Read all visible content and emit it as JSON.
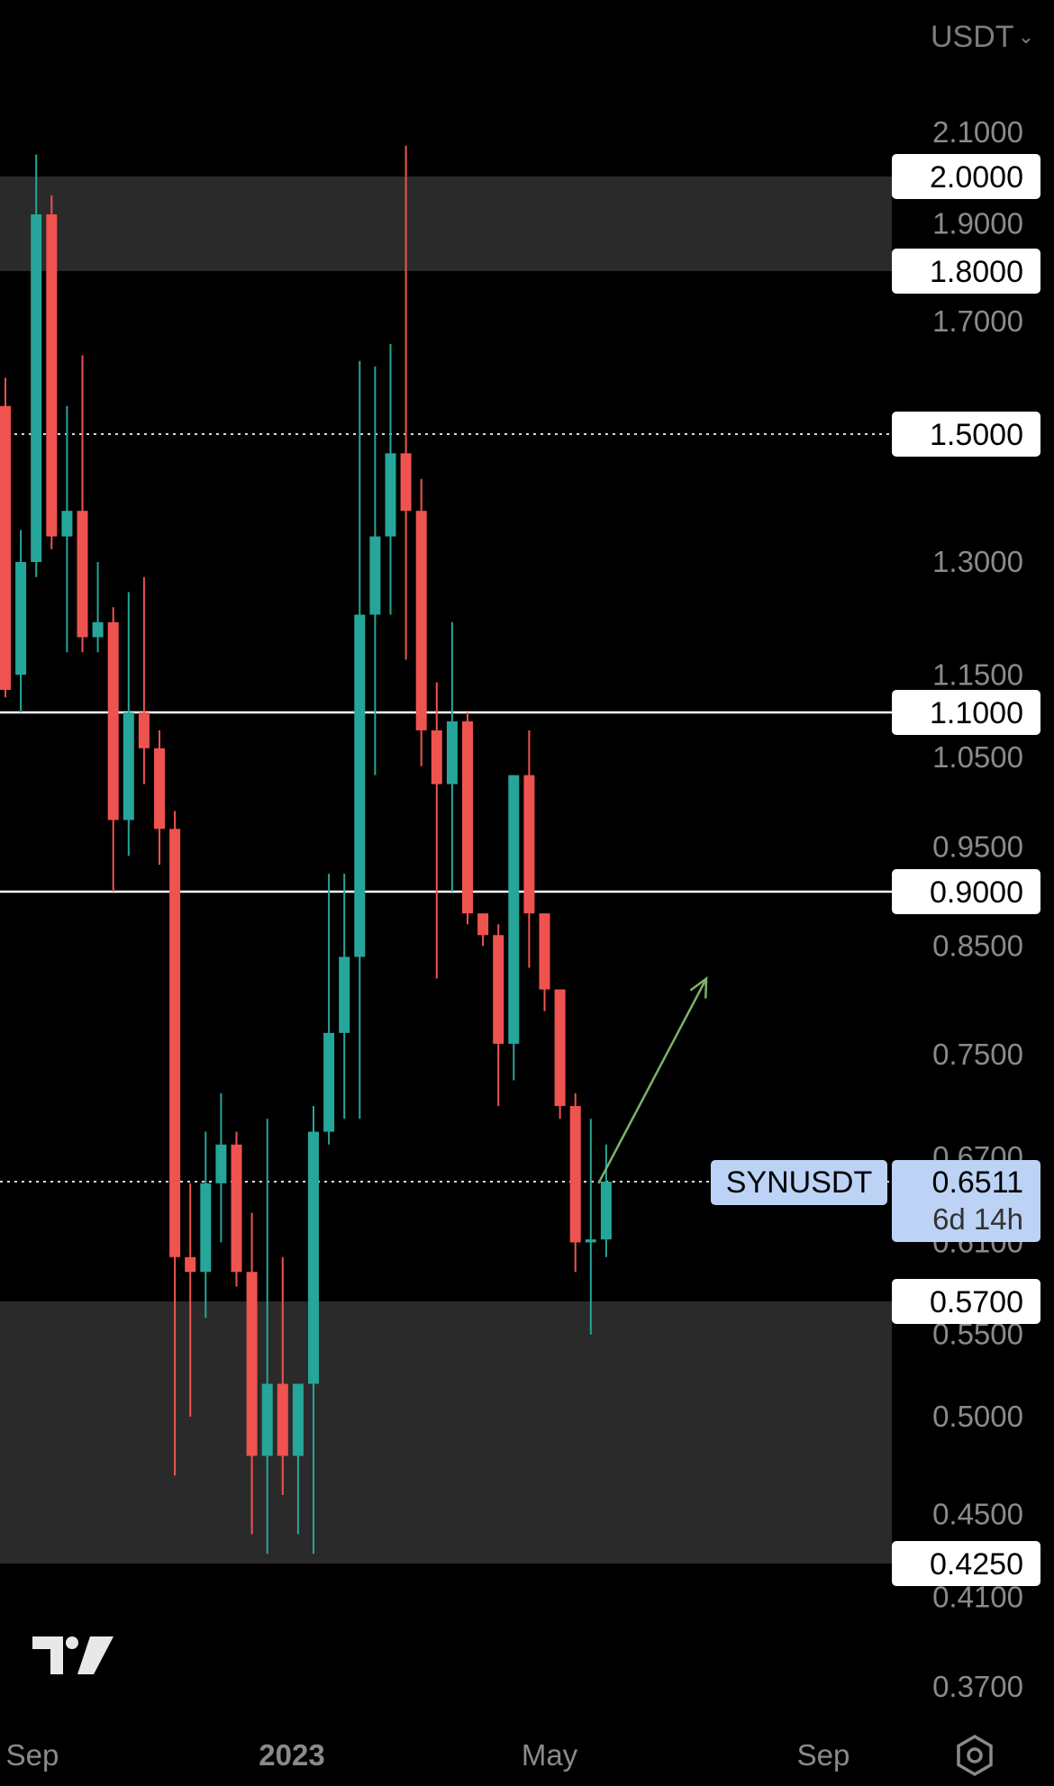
{
  "header": {
    "currency_label": "USDT",
    "currency_icon": "chevron-down-icon"
  },
  "footer": {
    "logo_icon": "tradingview-logo-icon",
    "settings_icon": "gear-icon"
  },
  "colors": {
    "background": "#000000",
    "up": "#26a69a",
    "down": "#ef5350",
    "zone": "#2a2a2a",
    "level_line": "#ffffff",
    "arrow": "#7cb36b",
    "last_price_bg": "#bcd3f5",
    "axis_text": "#8a8a8a"
  },
  "chart_data": {
    "type": "candlestick",
    "symbol": "SYNUSDT",
    "last_price": "0.6511",
    "countdown": "6d 14h",
    "y_ticks": [
      "2.1000",
      "1.9000",
      "1.7000",
      "1.3000",
      "1.1500",
      "1.0500",
      "0.9500",
      "0.8500",
      "0.7500",
      "0.6700",
      "0.6100",
      "0.5500",
      "0.5000",
      "0.4500",
      "0.4100",
      "0.3700"
    ],
    "level_labels": [
      {
        "value": "2.0000",
        "y": 2.0
      },
      {
        "value": "1.8000",
        "y": 1.8
      },
      {
        "value": "1.5000",
        "y": 1.5
      },
      {
        "value": "1.1000",
        "y": 1.1
      },
      {
        "value": "0.9000",
        "y": 0.9
      },
      {
        "value": "0.5700",
        "y": 0.57
      },
      {
        "value": "0.4250",
        "y": 0.425
      }
    ],
    "horizontal_lines": [
      {
        "y": 1.1,
        "style": "solid"
      },
      {
        "y": 0.9,
        "style": "solid"
      },
      {
        "y": 1.5,
        "style": "dotted"
      },
      {
        "y": 0.6511,
        "style": "dotted"
      }
    ],
    "zones": [
      {
        "from": 1.8,
        "to": 2.0
      },
      {
        "from": 0.425,
        "to": 0.57
      }
    ],
    "x_labels": [
      {
        "label": "Sep",
        "bold": false
      },
      {
        "label": "2023",
        "bold": true
      },
      {
        "label": "May",
        "bold": false
      },
      {
        "label": "Sep",
        "bold": false
      }
    ],
    "candles": [
      {
        "o": 1.55,
        "h": 1.6,
        "l": 1.12,
        "c": 1.13
      },
      {
        "o": 1.15,
        "h": 1.35,
        "l": 1.1,
        "c": 1.3
      },
      {
        "o": 1.3,
        "h": 2.05,
        "l": 1.28,
        "c": 1.92
      },
      {
        "o": 1.92,
        "h": 1.96,
        "l": 1.32,
        "c": 1.34
      },
      {
        "o": 1.34,
        "h": 1.55,
        "l": 1.18,
        "c": 1.38
      },
      {
        "o": 1.38,
        "h": 1.64,
        "l": 1.18,
        "c": 1.2
      },
      {
        "o": 1.2,
        "h": 1.3,
        "l": 1.18,
        "c": 1.22
      },
      {
        "o": 1.22,
        "h": 1.24,
        "l": 0.9,
        "c": 0.98
      },
      {
        "o": 0.98,
        "h": 1.26,
        "l": 0.94,
        "c": 1.1
      },
      {
        "o": 1.1,
        "h": 1.28,
        "l": 1.02,
        "c": 1.06
      },
      {
        "o": 1.06,
        "h": 1.08,
        "l": 0.93,
        "c": 0.97
      },
      {
        "o": 0.97,
        "h": 0.99,
        "l": 0.47,
        "c": 0.6
      },
      {
        "o": 0.6,
        "h": 0.65,
        "l": 0.5,
        "c": 0.59
      },
      {
        "o": 0.59,
        "h": 0.69,
        "l": 0.56,
        "c": 0.65
      },
      {
        "o": 0.65,
        "h": 0.72,
        "l": 0.61,
        "c": 0.68
      },
      {
        "o": 0.68,
        "h": 0.69,
        "l": 0.58,
        "c": 0.59
      },
      {
        "o": 0.59,
        "h": 0.63,
        "l": 0.44,
        "c": 0.48
      },
      {
        "o": 0.48,
        "h": 0.7,
        "l": 0.43,
        "c": 0.52
      },
      {
        "o": 0.52,
        "h": 0.6,
        "l": 0.46,
        "c": 0.48
      },
      {
        "o": 0.48,
        "h": 0.52,
        "l": 0.44,
        "c": 0.52
      },
      {
        "o": 0.52,
        "h": 0.71,
        "l": 0.43,
        "c": 0.69
      },
      {
        "o": 0.69,
        "h": 0.92,
        "l": 0.68,
        "c": 0.77
      },
      {
        "o": 0.77,
        "h": 0.92,
        "l": 0.7,
        "c": 0.84
      },
      {
        "o": 0.84,
        "h": 1.63,
        "l": 0.7,
        "c": 1.23
      },
      {
        "o": 1.23,
        "h": 1.62,
        "l": 1.03,
        "c": 1.34
      },
      {
        "o": 1.34,
        "h": 1.66,
        "l": 1.23,
        "c": 1.47
      },
      {
        "o": 1.47,
        "h": 2.07,
        "l": 1.17,
        "c": 1.38
      },
      {
        "o": 1.38,
        "h": 1.43,
        "l": 1.04,
        "c": 1.08
      },
      {
        "o": 1.08,
        "h": 1.14,
        "l": 0.82,
        "c": 1.02
      },
      {
        "o": 1.02,
        "h": 1.22,
        "l": 0.9,
        "c": 1.09
      },
      {
        "o": 1.09,
        "h": 1.1,
        "l": 0.87,
        "c": 0.88
      },
      {
        "o": 0.88,
        "h": 0.88,
        "l": 0.85,
        "c": 0.86
      },
      {
        "o": 0.86,
        "h": 0.87,
        "l": 0.71,
        "c": 0.76
      },
      {
        "o": 0.76,
        "h": 1.03,
        "l": 0.73,
        "c": 1.03
      },
      {
        "o": 1.03,
        "h": 1.08,
        "l": 0.83,
        "c": 0.88
      },
      {
        "o": 0.88,
        "h": 0.88,
        "l": 0.79,
        "c": 0.81
      },
      {
        "o": 0.81,
        "h": 0.81,
        "l": 0.7,
        "c": 0.71
      },
      {
        "o": 0.71,
        "h": 0.72,
        "l": 0.59,
        "c": 0.61
      },
      {
        "o": 0.61,
        "h": 0.7,
        "l": 0.55,
        "c": 0.612
      },
      {
        "o": 0.612,
        "h": 0.68,
        "l": 0.6,
        "c": 0.6511
      }
    ],
    "arrow": {
      "from_index": 38.5,
      "from_y": 0.65,
      "to_index": 45.5,
      "to_y": 0.82
    }
  }
}
